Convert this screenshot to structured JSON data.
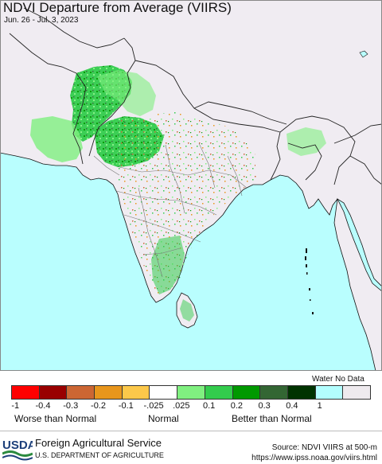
{
  "title": "NDVI Departure from Average (VIIRS)",
  "date_range": "Jun. 26 - Jul. 3, 2023",
  "map": {
    "region": "South Asia",
    "colors": {
      "water": "#b9fefe",
      "land_no_data": "#f0ecf2",
      "border": "#6a6a6a",
      "coast": "#111111"
    }
  },
  "legend": {
    "extra_labels": [
      "Water",
      "No Data"
    ],
    "swatches": [
      {
        "color": "#ff0000"
      },
      {
        "color": "#990000"
      },
      {
        "color": "#cc6633"
      },
      {
        "color": "#e8961c"
      },
      {
        "color": "#fcc84a"
      },
      {
        "color": "#ffffff"
      },
      {
        "color": "#80f080"
      },
      {
        "color": "#33cc4d"
      },
      {
        "color": "#009900"
      },
      {
        "color": "#336633"
      },
      {
        "color": "#003300"
      },
      {
        "color": "#b3fefe"
      },
      {
        "color": "#eeeaee"
      }
    ],
    "ticks": [
      "-1",
      "-0.4",
      "-0.3",
      "-0.2",
      "-0.1",
      "-.025",
      ".025",
      "0.1",
      "0.2",
      "0.3",
      "0.4",
      "1"
    ],
    "categories": [
      "Worse than Normal",
      "Normal",
      "Better than Normal"
    ]
  },
  "footer": {
    "agency_logo": "USDA",
    "agency_name": "Foreign Agricultural Service",
    "department": "U.S. DEPARTMENT OF AGRICULTURE",
    "source": "Source: NDVI VIIRS at 500-m",
    "url": "https://www.ipss.noaa.gov/viirs.html"
  }
}
